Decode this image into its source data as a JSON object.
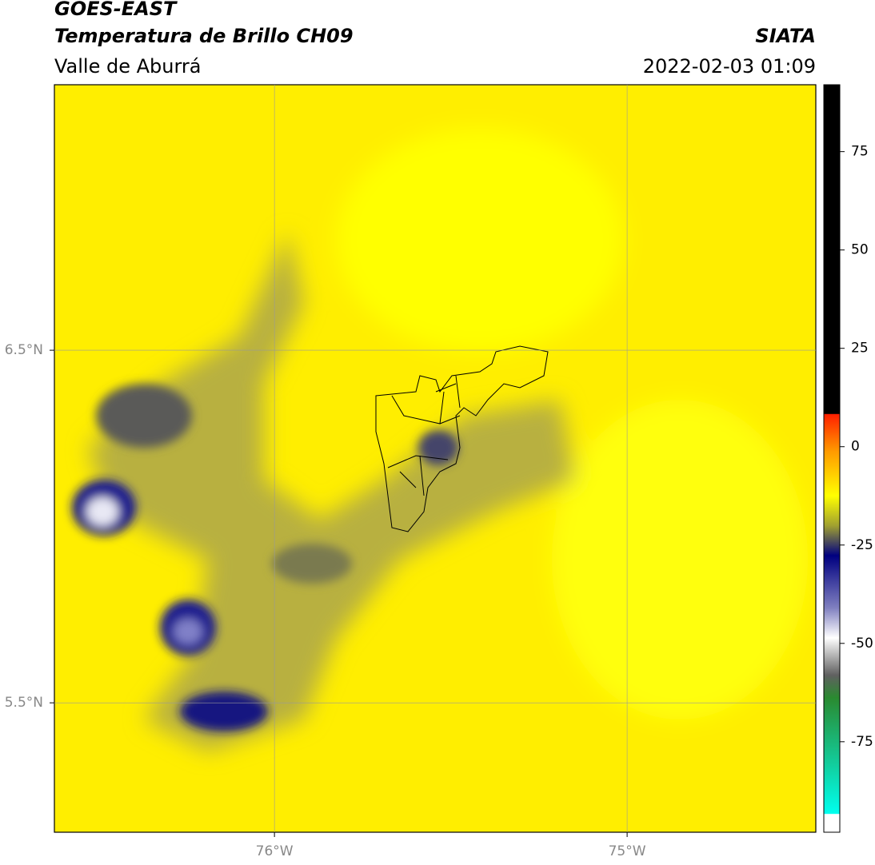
{
  "header": {
    "title": "GOES-EAST",
    "subtitle": "Temperatura de Brillo CH09",
    "region": "Valle de Aburrá",
    "source": "SIATA",
    "datetime": "2022-02-03 01:09"
  },
  "map": {
    "xlim": [
      -76.624,
      -74.465
    ],
    "ylim": [
      5.133,
      7.253
    ],
    "xticks": [
      {
        "value": -76,
        "label": "76°W"
      },
      {
        "value": -75,
        "label": "75°W"
      }
    ],
    "yticks": [
      {
        "value": 6.5,
        "label": "6.5°N"
      },
      {
        "value": 5.5,
        "label": "5.5°N"
      }
    ],
    "grid": true
  },
  "colorbar": {
    "ylim": [
      -98,
      92
    ],
    "yticks": [
      75,
      50,
      25,
      0,
      -25,
      -50,
      -75
    ]
  }
}
